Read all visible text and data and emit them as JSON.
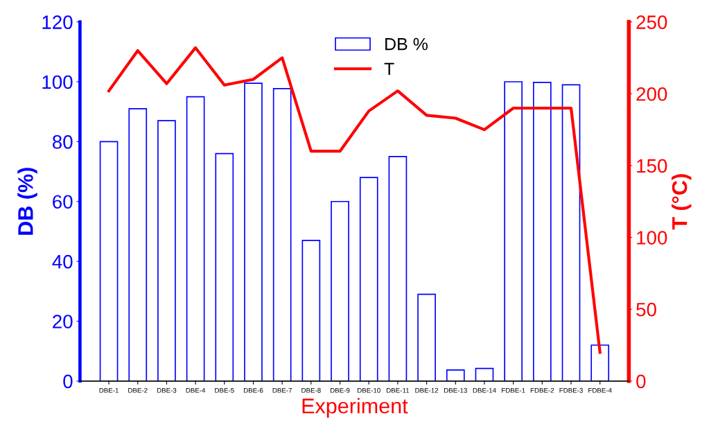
{
  "chart_data": {
    "type": "bar",
    "categories": [
      "DBE-1",
      "DBE-2",
      "DBE-3",
      "DBE-4",
      "DBE-5",
      "DBE-6",
      "DBE-7",
      "DBE-8",
      "DBE-9",
      "DBE-10",
      "DBE-11",
      "DBE-12",
      "DBE-13",
      "DBE-14",
      "FDBE-1",
      "FDBE-2",
      "FDBE-3",
      "FDBE-4"
    ],
    "series": [
      {
        "name": "DB %",
        "color": "#0000ff",
        "values": [
          80,
          91,
          87,
          95,
          76,
          99.5,
          97.7,
          47,
          60,
          68,
          75,
          29,
          3.7,
          4.2,
          100,
          99.8,
          99,
          12
        ]
      },
      {
        "name": "T",
        "type": "line",
        "axis": "y2",
        "color": "#ff0000",
        "values": [
          202,
          230,
          207,
          232,
          206,
          210,
          225,
          160,
          160,
          188,
          202,
          185,
          183,
          175,
          190,
          190,
          190,
          20
        ]
      }
    ],
    "xlabel": "Experiment",
    "ylabel": "DB (%)",
    "y2label": "T (°C)",
    "ylim": [
      0,
      120
    ],
    "yticks": [
      0,
      20,
      40,
      60,
      80,
      100,
      120
    ],
    "y2lim": [
      0,
      250
    ],
    "y2ticks": [
      0,
      50,
      100,
      150,
      200,
      250
    ],
    "legend": "top",
    "grid": false
  }
}
